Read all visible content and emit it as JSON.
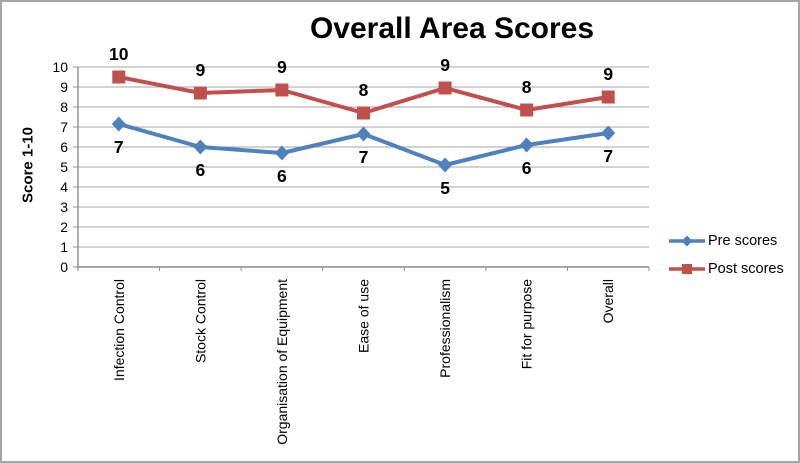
{
  "title": "Overall Area Scores",
  "colors": {
    "pre_series": "#4F81BD",
    "post_series": "#C0504D",
    "gridline": "#A6A6A6",
    "axis_line": "#8C8C8C",
    "frame_border": "#A6A6A6",
    "text": "#000000",
    "background": "#FFFFFF"
  },
  "chart_data": {
    "type": "line",
    "title": "Overall Area Scores",
    "xlabel": "",
    "ylabel": "Score 1-10",
    "ylim": [
      0,
      10
    ],
    "yticks": [
      0,
      1,
      2,
      3,
      4,
      5,
      6,
      7,
      8,
      9,
      10
    ],
    "grid": true,
    "legend_position": "right",
    "categories": [
      "Infection Control",
      "Stock Control",
      "Organisation of Equipment",
      "Ease of use",
      "Professionalism",
      "Fit for purpose",
      "Overall"
    ],
    "series": [
      {
        "name": "Pre scores",
        "color": "#4F81BD",
        "marker": "diamond",
        "label_position": "below",
        "values": [
          7.15,
          6.0,
          5.7,
          6.65,
          5.1,
          6.1,
          6.7
        ],
        "labels": [
          "7",
          "6",
          "6",
          "7",
          "5",
          "6",
          "7"
        ]
      },
      {
        "name": "Post scores",
        "color": "#C0504D",
        "marker": "square",
        "label_position": "above",
        "values": [
          9.5,
          8.7,
          8.85,
          7.7,
          8.95,
          7.85,
          8.5
        ],
        "labels": [
          "10",
          "9",
          "9",
          "8",
          "9",
          "8",
          "9"
        ]
      }
    ]
  }
}
